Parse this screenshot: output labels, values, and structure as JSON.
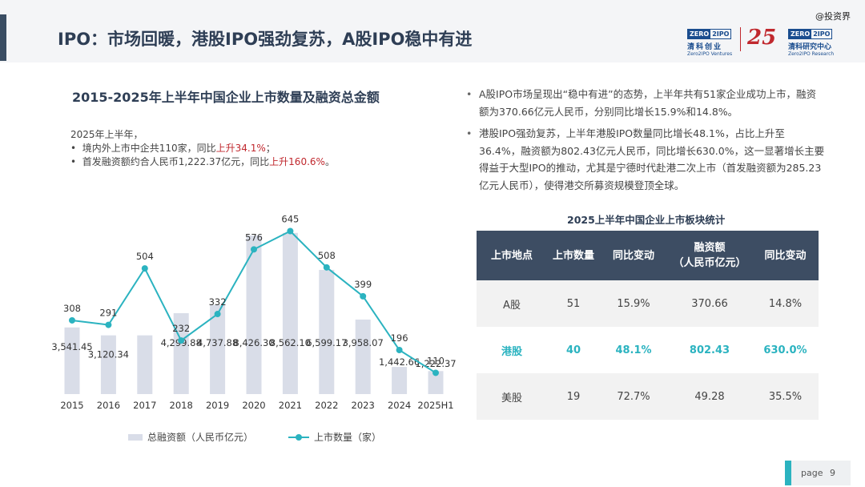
{
  "slide_title": "IPO：市场回暖，港股IPO强劲复苏，A股IPO稳中有进",
  "watermark": "@投资界",
  "logos": {
    "zero": "ZERO",
    "two": "2IPO",
    "cn_ventures": "清科创业",
    "en_ventures": "Zero2IPO Ventures",
    "anniversary": "25",
    "cn_research": "清科研究中心",
    "en_research": "Zero2IPO Research"
  },
  "chart_title": "2015-2025年上半年中国企业上市数量及融资总金额",
  "notes": {
    "intro": "2025年上半年，",
    "line1_pre": "境内外上市中企共110家，同比",
    "line1_red": "上升34.1%",
    "line1_post": "；",
    "line2_pre": "首发融资额约合人民币1,222.37亿元，同比",
    "line2_red": "上升160.6%",
    "line2_post": "。"
  },
  "chart_data": {
    "type": "bar+line",
    "categories": [
      "2015",
      "2016",
      "2017",
      "2018",
      "2019",
      "2020",
      "2021",
      "2022",
      "2023",
      "2024",
      "2025H1"
    ],
    "series": [
      {
        "name": "总融资额（人民币亿元）",
        "type": "bar",
        "values": [
          3541.45,
          3120.34,
          3120.34,
          4299.88,
          4737.88,
          8426.3,
          8562.1,
          6599.17,
          3958.07,
          1442.66,
          1222.37
        ],
        "labels": [
          "3,541.45",
          "3,120.34",
          "",
          "4,299.88",
          "4,737.88",
          "8,426.30",
          "8,562.10",
          "6,599.17",
          "3,958.07",
          "1,442.66",
          "1,222.37"
        ]
      },
      {
        "name": "上市数量（家）",
        "type": "line",
        "values": [
          308,
          291,
          504,
          232,
          332,
          576,
          645,
          508,
          399,
          196,
          110
        ],
        "labels": [
          "308",
          "291",
          "504",
          "232",
          "332",
          "576",
          "645",
          "508",
          "399",
          "196",
          "110"
        ]
      }
    ],
    "bar_color": "#d9dde8",
    "line_color": "#2bb3c0",
    "bar_max": 10000,
    "line_range": [
      0,
      700
    ],
    "legend_position": "bottom"
  },
  "bullets": [
    "A股IPO市场呈现出“稳中有进”的态势，上半年共有51家企业成功上市，融资额为370.66亿元人民币，分别同比增长15.9%和14.8%。",
    "港股IPO强劲复苏，上半年港股IPO数量同比增长48.1%，占比上升至36.4%，融资额为802.43亿元人民币，同比增长630.0%，这一显著增长主要得益于大型IPO的推动，尤其是宁德时代赴港二次上市（首发融资额为285.23亿元人民币），使得港交所募资规模登顶全球。"
  ],
  "table": {
    "title": "2025上半年中国企业上市板块统计",
    "headers": [
      "上市地点",
      "上市数量",
      "同比变动",
      "融资额\n（人民币亿元）",
      "同比变动"
    ],
    "rows": [
      [
        "A股",
        "51",
        "15.9%",
        "370.66",
        "14.8%"
      ],
      [
        "港股",
        "40",
        "48.1%",
        "802.43",
        "630.0%"
      ],
      [
        "美股",
        "19",
        "72.7%",
        "49.28",
        "35.5%"
      ]
    ],
    "highlight_color": "#2bb3c0"
  },
  "page": {
    "label": "page",
    "number": "9"
  }
}
